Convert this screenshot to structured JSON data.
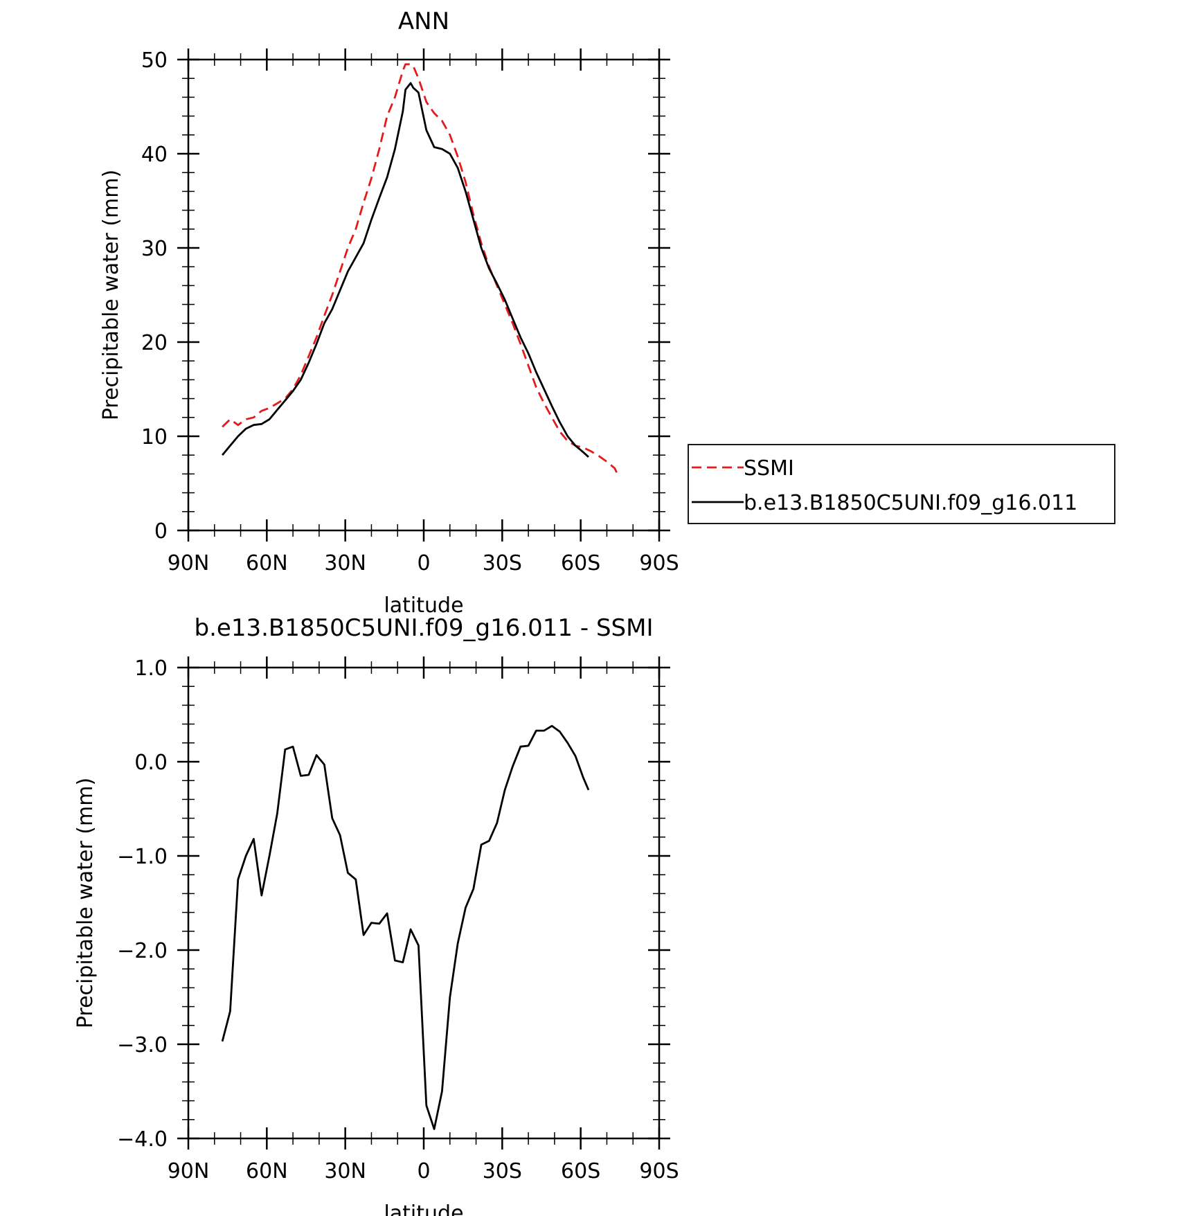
{
  "chart_data": [
    {
      "type": "line",
      "title": "ANN",
      "xlabel": "latitude",
      "ylabel": "Precipitable water (mm)",
      "xlim": [
        90,
        -90
      ],
      "ylim": [
        0,
        50
      ],
      "xticks": [
        90,
        60,
        30,
        0,
        -30,
        -60,
        -90
      ],
      "xtick_labels": [
        "90N",
        "60N",
        "30N",
        "0",
        "30S",
        "60S",
        "90S"
      ],
      "yticks": [
        0,
        10,
        20,
        30,
        40,
        50
      ],
      "ytick_labels": [
        "0",
        "10",
        "20",
        "30",
        "40",
        "50"
      ],
      "legend_position": "right",
      "series": [
        {
          "name": "SSMI",
          "color": "#e41a1c",
          "style": "dashed",
          "x": [
            77,
            74,
            71,
            68,
            65,
            62,
            59,
            56,
            53,
            50,
            47,
            44,
            41,
            38,
            35,
            32,
            29,
            26,
            23,
            20,
            17,
            14,
            11,
            8,
            7,
            5,
            4,
            2,
            -1,
            -4,
            -7,
            -10,
            -13,
            -16,
            -19,
            -22,
            -25,
            -28,
            -31,
            -34,
            -37,
            -40,
            -43,
            -46,
            -49,
            -52,
            -55,
            -58,
            -61,
            -64,
            -67,
            -70,
            -73,
            -74
          ],
          "y": [
            11.0,
            11.8,
            11.2,
            11.8,
            12.0,
            12.7,
            13.0,
            13.5,
            14.0,
            15.0,
            16.5,
            18.5,
            20.5,
            22.8,
            25.0,
            27.5,
            30.0,
            32.0,
            34.8,
            37.4,
            40.5,
            44.0,
            46.0,
            48.8,
            49.5,
            49.5,
            49.3,
            48.0,
            45.5,
            44.3,
            43.5,
            42.0,
            39.7,
            37.0,
            33.5,
            30.5,
            28.0,
            26.0,
            24.0,
            22.0,
            19.8,
            17.5,
            15.2,
            13.5,
            12.0,
            10.5,
            9.5,
            9.0,
            8.8,
            8.4,
            7.9,
            7.3,
            6.6,
            6.0
          ]
        },
        {
          "name": "b.e13.B1850C5UNI.f09_g16.011",
          "color": "#000000",
          "style": "solid",
          "x": [
            77,
            74,
            71,
            68,
            65,
            62,
            59,
            56,
            53,
            50,
            47,
            44,
            41,
            38,
            35,
            32,
            29,
            26,
            23,
            20,
            17,
            14,
            11,
            8,
            7,
            5,
            4,
            2,
            -1,
            -4,
            -7,
            -10,
            -13,
            -16,
            -19,
            -22,
            -25,
            -28,
            -31,
            -34,
            -37,
            -40,
            -43,
            -46,
            -49,
            -52,
            -55,
            -58,
            -61,
            -63
          ],
          "y": [
            8.0,
            9.0,
            10.0,
            10.8,
            11.2,
            11.3,
            11.8,
            12.8,
            13.8,
            14.8,
            16.0,
            17.8,
            19.8,
            22.0,
            23.5,
            25.5,
            27.5,
            29.0,
            30.5,
            33.0,
            35.3,
            37.5,
            40.5,
            44.5,
            46.8,
            47.5,
            47.0,
            46.5,
            42.5,
            40.7,
            40.5,
            40.0,
            38.5,
            36.0,
            33.0,
            30.0,
            27.8,
            26.2,
            24.5,
            22.5,
            20.5,
            18.8,
            16.8,
            15.0,
            13.2,
            11.5,
            10.0,
            9.0,
            8.3,
            7.8
          ]
        }
      ]
    },
    {
      "type": "line",
      "title": "b.e13.B1850C5UNI.f09_g16.011 - SSMI",
      "xlabel": "latitude",
      "ylabel": "Precipitable water (mm)",
      "xlim": [
        90,
        -90
      ],
      "ylim": [
        -4.0,
        1.0
      ],
      "xticks": [
        90,
        60,
        30,
        0,
        -30,
        -60,
        -90
      ],
      "xtick_labels": [
        "90N",
        "60N",
        "30N",
        "0",
        "30S",
        "60S",
        "90S"
      ],
      "yticks": [
        -4.0,
        -3.0,
        -2.0,
        -1.0,
        0.0,
        1.0
      ],
      "ytick_labels": [
        "−4.0",
        "−3.0",
        "−2.0",
        "−1.0",
        "0.0",
        "1.0"
      ],
      "series": [
        {
          "color": "#000000",
          "style": "solid",
          "x": [
            77,
            74,
            71,
            68,
            65,
            62,
            59,
            56,
            53,
            50,
            47,
            44,
            41,
            38,
            35,
            32,
            29,
            26,
            23,
            20,
            17,
            14,
            11,
            8,
            5,
            2,
            -1,
            -4,
            -7,
            -10,
            -13,
            -16,
            -19,
            -22,
            -25,
            -28,
            -31,
            -34,
            -37,
            -40,
            -43,
            -46,
            -49,
            -52,
            -55,
            -58,
            -61,
            -63
          ],
          "y": [
            -2.97,
            -2.65,
            -1.25,
            -1.0,
            -0.82,
            -1.42,
            -1.0,
            -0.55,
            0.13,
            0.16,
            -0.15,
            -0.14,
            0.07,
            -0.03,
            -0.6,
            -0.78,
            -1.18,
            -1.25,
            -1.84,
            -1.71,
            -1.72,
            -1.61,
            -2.11,
            -2.13,
            -1.78,
            -1.95,
            -3.65,
            -3.9,
            -3.5,
            -2.5,
            -1.93,
            -1.55,
            -1.35,
            -0.88,
            -0.84,
            -0.65,
            -0.3,
            -0.05,
            0.16,
            0.17,
            0.33,
            0.33,
            0.38,
            0.32,
            0.2,
            0.06,
            -0.17,
            -0.3
          ]
        }
      ]
    }
  ]
}
